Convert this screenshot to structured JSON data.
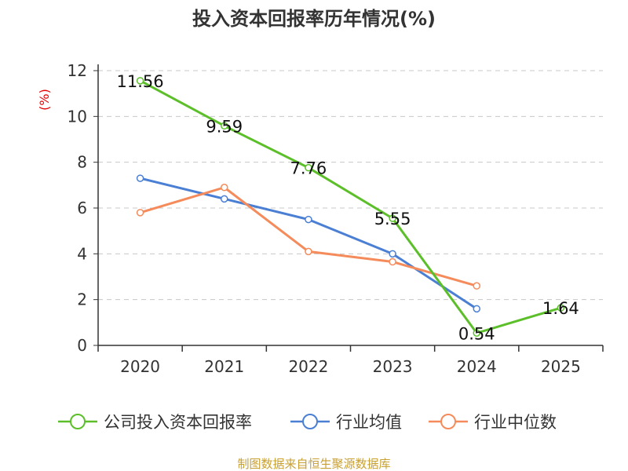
{
  "chart_data": {
    "type": "line",
    "title": "投入资本回报率历年情况(%)",
    "ylabel": "(%)",
    "xlabel": "",
    "categories": [
      "2020",
      "2021",
      "2022",
      "2023",
      "2024",
      "2025"
    ],
    "ylim": [
      0,
      12
    ],
    "yticks": [
      0,
      2,
      4,
      6,
      8,
      10,
      12
    ],
    "grid": true,
    "legend_position": "bottom",
    "series": [
      {
        "name": "公司投入资本回报率",
        "color": "#5cbf2a",
        "values": [
          11.56,
          9.59,
          7.76,
          5.55,
          0.54,
          1.64
        ],
        "labels": [
          "11.56",
          "9.59",
          "7.76",
          "5.55",
          "0.54",
          "1.64"
        ]
      },
      {
        "name": "行业均值",
        "color": "#4a7fd4",
        "values": [
          7.3,
          6.4,
          5.5,
          4.0,
          1.6,
          null
        ]
      },
      {
        "name": "行业中位数",
        "color": "#f58b5a",
        "values": [
          5.8,
          6.9,
          4.1,
          3.65,
          2.6,
          null
        ]
      }
    ]
  },
  "source": "制图数据来自恒生聚源数据库"
}
